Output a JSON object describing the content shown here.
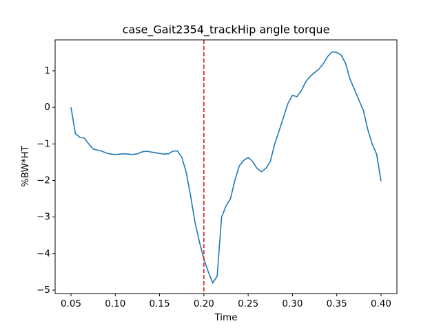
{
  "chart_data": {
    "type": "line",
    "title": "case_Gait2354_trackHip angle torque",
    "xlabel": "Time",
    "ylabel": "%BW*HT",
    "x": [
      0.05,
      0.055,
      0.06,
      0.065,
      0.07,
      0.075,
      0.08,
      0.085,
      0.09,
      0.095,
      0.1,
      0.105,
      0.11,
      0.115,
      0.12,
      0.125,
      0.13,
      0.135,
      0.14,
      0.145,
      0.15,
      0.155,
      0.16,
      0.165,
      0.17,
      0.175,
      0.18,
      0.185,
      0.19,
      0.195,
      0.2,
      0.205,
      0.21,
      0.215,
      0.22,
      0.225,
      0.23,
      0.235,
      0.24,
      0.245,
      0.25,
      0.255,
      0.26,
      0.265,
      0.27,
      0.275,
      0.28,
      0.285,
      0.29,
      0.295,
      0.3,
      0.305,
      0.31,
      0.315,
      0.32,
      0.325,
      0.33,
      0.335,
      0.34,
      0.345,
      0.35,
      0.355,
      0.36,
      0.365,
      0.37,
      0.375,
      0.38,
      0.385,
      0.39,
      0.395,
      0.4
    ],
    "series": [
      {
        "color": "#1f77b4",
        "values": [
          0,
          -0.72,
          -0.82,
          -0.84,
          -1.0,
          -1.14,
          -1.17,
          -1.2,
          -1.25,
          -1.28,
          -1.29,
          -1.28,
          -1.27,
          -1.28,
          -1.29,
          -1.27,
          -1.22,
          -1.2,
          -1.22,
          -1.24,
          -1.26,
          -1.28,
          -1.27,
          -1.2,
          -1.19,
          -1.36,
          -1.77,
          -2.42,
          -3.14,
          -3.68,
          -4.15,
          -4.5,
          -4.8,
          -4.62,
          -3.0,
          -2.7,
          -2.5,
          -2.0,
          -1.6,
          -1.45,
          -1.37,
          -1.48,
          -1.67,
          -1.76,
          -1.67,
          -1.48,
          -1.0,
          -0.64,
          -0.26,
          0.11,
          0.33,
          0.29,
          0.45,
          0.7,
          0.85,
          0.95,
          1.05,
          1.2,
          1.4,
          1.52,
          1.5,
          1.43,
          1.2,
          0.77,
          0.49,
          0.2,
          -0.08,
          -0.6,
          -1.0,
          -1.28,
          -2.02
        ]
      }
    ],
    "vline": {
      "x": 0.2,
      "color": "#e31a1c"
    },
    "xlim": [
      0.0321,
      0.4179
    ],
    "xticks": [
      0.05,
      {
        "value": 0.1,
        "label": "0.10"
      },
      0.15,
      {
        "value": 0.2,
        "label": "0.20"
      },
      0.25,
      {
        "value": 0.3,
        "label": "0.30"
      },
      0.35,
      {
        "value": 0.4,
        "label": "0.40"
      }
    ],
    "ylim": [
      -5.094,
      1.846
    ],
    "yticks": [
      {
        "value": -5,
        "label": "−5"
      },
      {
        "value": -4,
        "label": "−4"
      },
      {
        "value": -3,
        "label": "−3"
      },
      {
        "value": -2,
        "label": "−2"
      },
      {
        "value": -1,
        "label": "−1"
      },
      0,
      1
    ],
    "grid": false
  }
}
